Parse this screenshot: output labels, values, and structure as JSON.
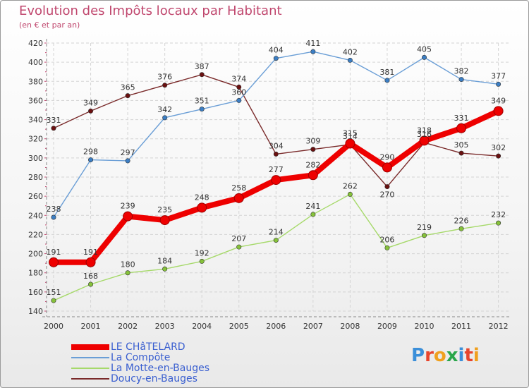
{
  "header": {
    "title": "Evolution des Impôts locaux par Habitant",
    "subtitle": "(en € et par an)"
  },
  "logo": {
    "letters": [
      "P",
      "r",
      "o",
      "x",
      "i",
      "t",
      "i"
    ],
    "colors": [
      "#3b8fd9",
      "#e8452c",
      "#f0a01e",
      "#2aa64a",
      "#3b8fd9",
      "#e8452c",
      "#f0a01e"
    ]
  },
  "chart_data": {
    "type": "line",
    "title": "Evolution des Impôts locaux par Habitant",
    "subtitle": "(en € et par an)",
    "xlabel": "",
    "ylabel": "",
    "categories": [
      "2000",
      "2001",
      "2002",
      "2003",
      "2004",
      "2005",
      "2006",
      "2007",
      "2008",
      "2009",
      "2010",
      "2011",
      "2012"
    ],
    "ylim": [
      140,
      420
    ],
    "yticks": [
      140,
      160,
      180,
      200,
      220,
      240,
      260,
      280,
      300,
      320,
      340,
      360,
      380,
      400,
      420
    ],
    "grid": true,
    "legend_position": "bottom-left",
    "series": [
      {
        "name": "Doucy-en-Bauges",
        "color": "#7a2a2a",
        "marker": "#6a1010",
        "values": [
          331,
          349,
          365,
          376,
          387,
          374,
          304,
          309,
          314,
          270,
          316,
          305,
          302
        ],
        "labels": [
          "331",
          "349",
          "365",
          "376",
          "387",
          "374",
          "304",
          "309",
          "314",
          "270",
          "316",
          "305",
          "302"
        ],
        "label_pos": [
          "above",
          "above",
          "above",
          "above",
          "above",
          "above",
          "above",
          "above",
          "above",
          "below",
          "above",
          "above",
          "above"
        ],
        "thick": false
      },
      {
        "name": "La Compôte",
        "color": "#6a9ed6",
        "marker": "#3b7ec4",
        "values": [
          238,
          298,
          297,
          342,
          351,
          360,
          404,
          411,
          402,
          381,
          405,
          382,
          377
        ],
        "labels": [
          "238",
          "298",
          "297",
          "342",
          "351",
          "360",
          "404",
          "411",
          "402",
          "381",
          "405",
          "382",
          "377"
        ],
        "label_pos": [
          "above",
          "above",
          "above",
          "above",
          "above",
          "above",
          "above",
          "above",
          "above",
          "above",
          "above",
          "above",
          "above"
        ],
        "thick": false
      },
      {
        "name": "La Motte-en-Bauges",
        "color": "#a6d96a",
        "marker": "#86c23a",
        "values": [
          151,
          168,
          180,
          184,
          192,
          207,
          214,
          241,
          262,
          206,
          219,
          226,
          232
        ],
        "labels": [
          "151",
          "168",
          "180",
          "184",
          "192",
          "207",
          "214",
          "241",
          "262",
          "206",
          "219",
          "226",
          "232"
        ],
        "label_pos": [
          "above",
          "above",
          "above",
          "above",
          "above",
          "above",
          "above",
          "above",
          "above",
          "above",
          "above",
          "above",
          "above"
        ],
        "thick": false
      },
      {
        "name": "LE CHâTELARD",
        "color": "#ee0000",
        "marker": "#ee0000",
        "values": [
          191,
          191,
          239,
          235,
          248,
          258,
          277,
          282,
          315,
          290,
          318,
          331,
          349
        ],
        "labels": [
          "191",
          "191",
          "239",
          "235",
          "248",
          "258",
          "277",
          "282",
          "315",
          "290",
          "318",
          "331",
          "349"
        ],
        "label_pos": [
          "above",
          "above",
          "above",
          "above",
          "above",
          "above",
          "above",
          "above",
          "above",
          "above",
          "above",
          "above",
          "above"
        ],
        "thick": true
      }
    ],
    "legend_order": [
      "LE CHâTELARD",
      "La Compôte",
      "La Motte-en-Bauges",
      "Doucy-en-Bauges"
    ]
  }
}
